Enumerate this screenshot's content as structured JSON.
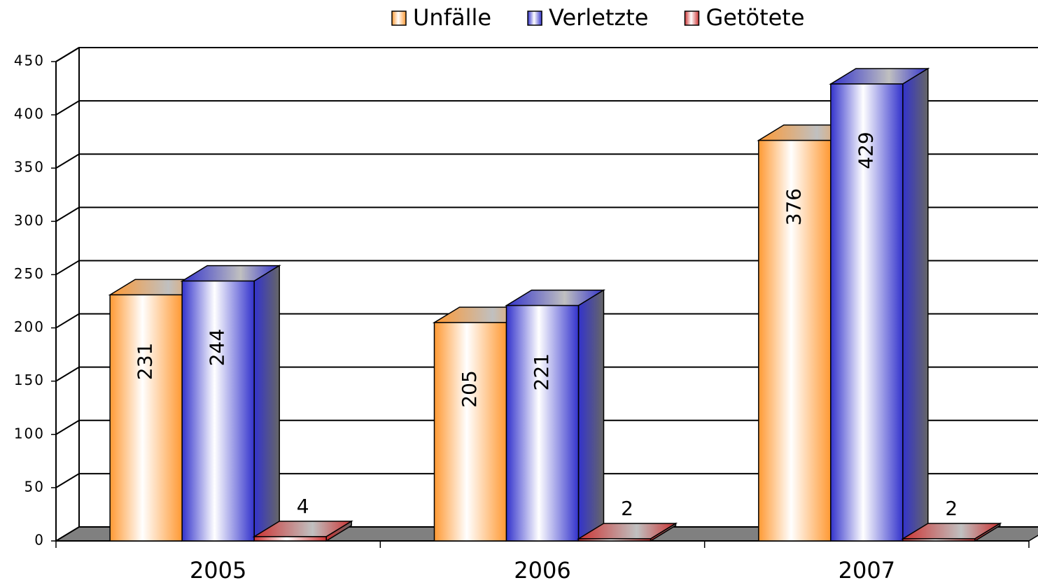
{
  "chart_data": {
    "type": "bar3d",
    "categories": [
      "2005",
      "2006",
      "2007"
    ],
    "series": [
      {
        "name": "Unfälle",
        "color": "#ff9933",
        "values": [
          231,
          205,
          376
        ]
      },
      {
        "name": "Verletzte",
        "color": "#3333cc",
        "values": [
          244,
          221,
          429
        ]
      },
      {
        "name": "Getötete",
        "color": "#cc3333",
        "values": [
          4,
          2,
          2
        ]
      }
    ],
    "ylim": [
      0,
      450
    ],
    "yticks": [
      0,
      50,
      100,
      150,
      200,
      250,
      300,
      350,
      400,
      450
    ],
    "grid": true,
    "legend": "top"
  }
}
